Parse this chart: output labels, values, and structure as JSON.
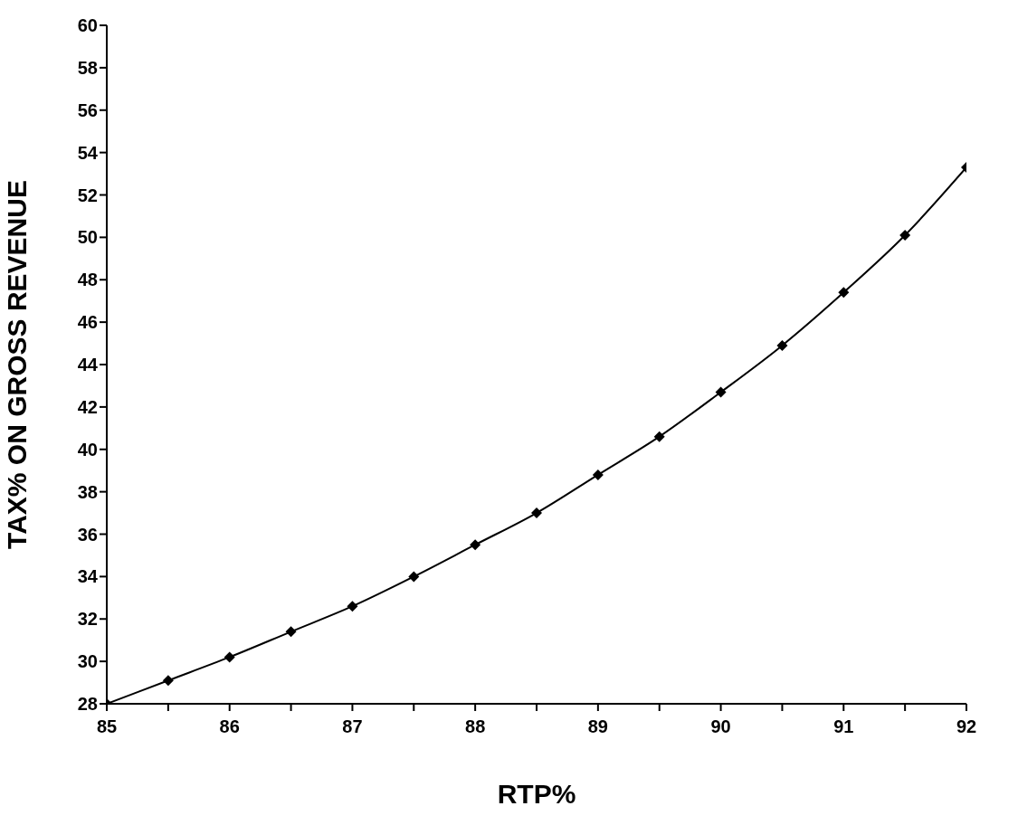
{
  "chart_data": {
    "type": "line",
    "xlabel": "RTP%",
    "ylabel": "TAX% ON GROSS REVENUE",
    "x": [
      85,
      85.5,
      86,
      86.5,
      87,
      87.5,
      88,
      88.5,
      89,
      89.5,
      90,
      90.5,
      91,
      91.5,
      92
    ],
    "series": [
      {
        "color": "#000000",
        "values": [
          28,
          29.1,
          30.2,
          31.4,
          32.6,
          34.0,
          35.5,
          37.0,
          38.8,
          40.6,
          42.7,
          44.9,
          47.4,
          50.1,
          53.3
        ]
      }
    ],
    "xlim": [
      85,
      92
    ],
    "xticks": [
      85,
      {
        "value": 85.5,
        "label": null
      },
      86,
      {
        "value": 86.5,
        "label": null
      },
      87,
      {
        "value": 87.5,
        "label": null
      },
      88,
      {
        "value": 88.5,
        "label": null
      },
      89,
      {
        "value": 89.5,
        "label": null
      },
      90,
      {
        "value": 90.5,
        "label": null
      },
      91,
      {
        "value": 91.5,
        "label": null
      },
      92
    ],
    "ylim": [
      28,
      60
    ],
    "yticks": [
      28,
      30,
      32,
      34,
      36,
      38,
      40,
      42,
      44,
      46,
      48,
      50,
      52,
      54,
      56,
      58,
      60
    ],
    "grid": false,
    "legend": false,
    "marker": "diamond",
    "line_style": "solid"
  }
}
